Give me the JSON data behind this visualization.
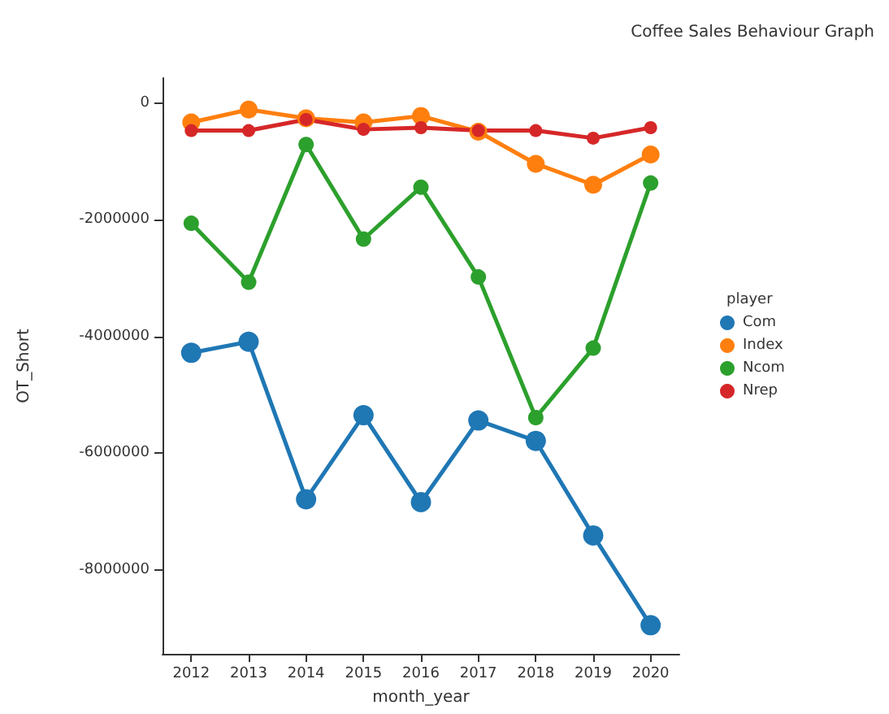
{
  "chart_data": {
    "type": "line",
    "title": "Coffee Sales Behaviour Graph",
    "xlabel": "month_year",
    "ylabel": "OT_Short",
    "legend_title": "player",
    "categories": [
      "2012",
      "2013",
      "2014",
      "2015",
      "2016",
      "2017",
      "2018",
      "2019",
      "2020"
    ],
    "series": [
      {
        "name": "Com",
        "color": "#1f77b4",
        "values": [
          -4280000,
          -4090000,
          -6790000,
          -5350000,
          -6840000,
          -5440000,
          -5790000,
          -7410000,
          -8950000
        ]
      },
      {
        "name": "Index",
        "color": "#ff7f0e",
        "values": [
          -330000,
          -110000,
          -260000,
          -330000,
          -220000,
          -490000,
          -1040000,
          -1400000,
          -880000
        ]
      },
      {
        "name": "Ncom",
        "color": "#2ca02c",
        "values": [
          -2060000,
          -3070000,
          -710000,
          -2330000,
          -1440000,
          -2980000,
          -5390000,
          -4200000,
          -1370000
        ]
      },
      {
        "name": "Nrep",
        "color": "#d62728",
        "values": [
          -470000,
          -470000,
          -280000,
          -450000,
          -420000,
          -470000,
          -470000,
          -600000,
          -420000
        ]
      }
    ],
    "ylim": [
      -9440000,
      430000
    ],
    "yticks": [
      -8000000,
      -6000000,
      -4000000,
      -2000000,
      0
    ],
    "grid": false,
    "legend": "right",
    "marker": "circle",
    "line_style": "solid"
  }
}
